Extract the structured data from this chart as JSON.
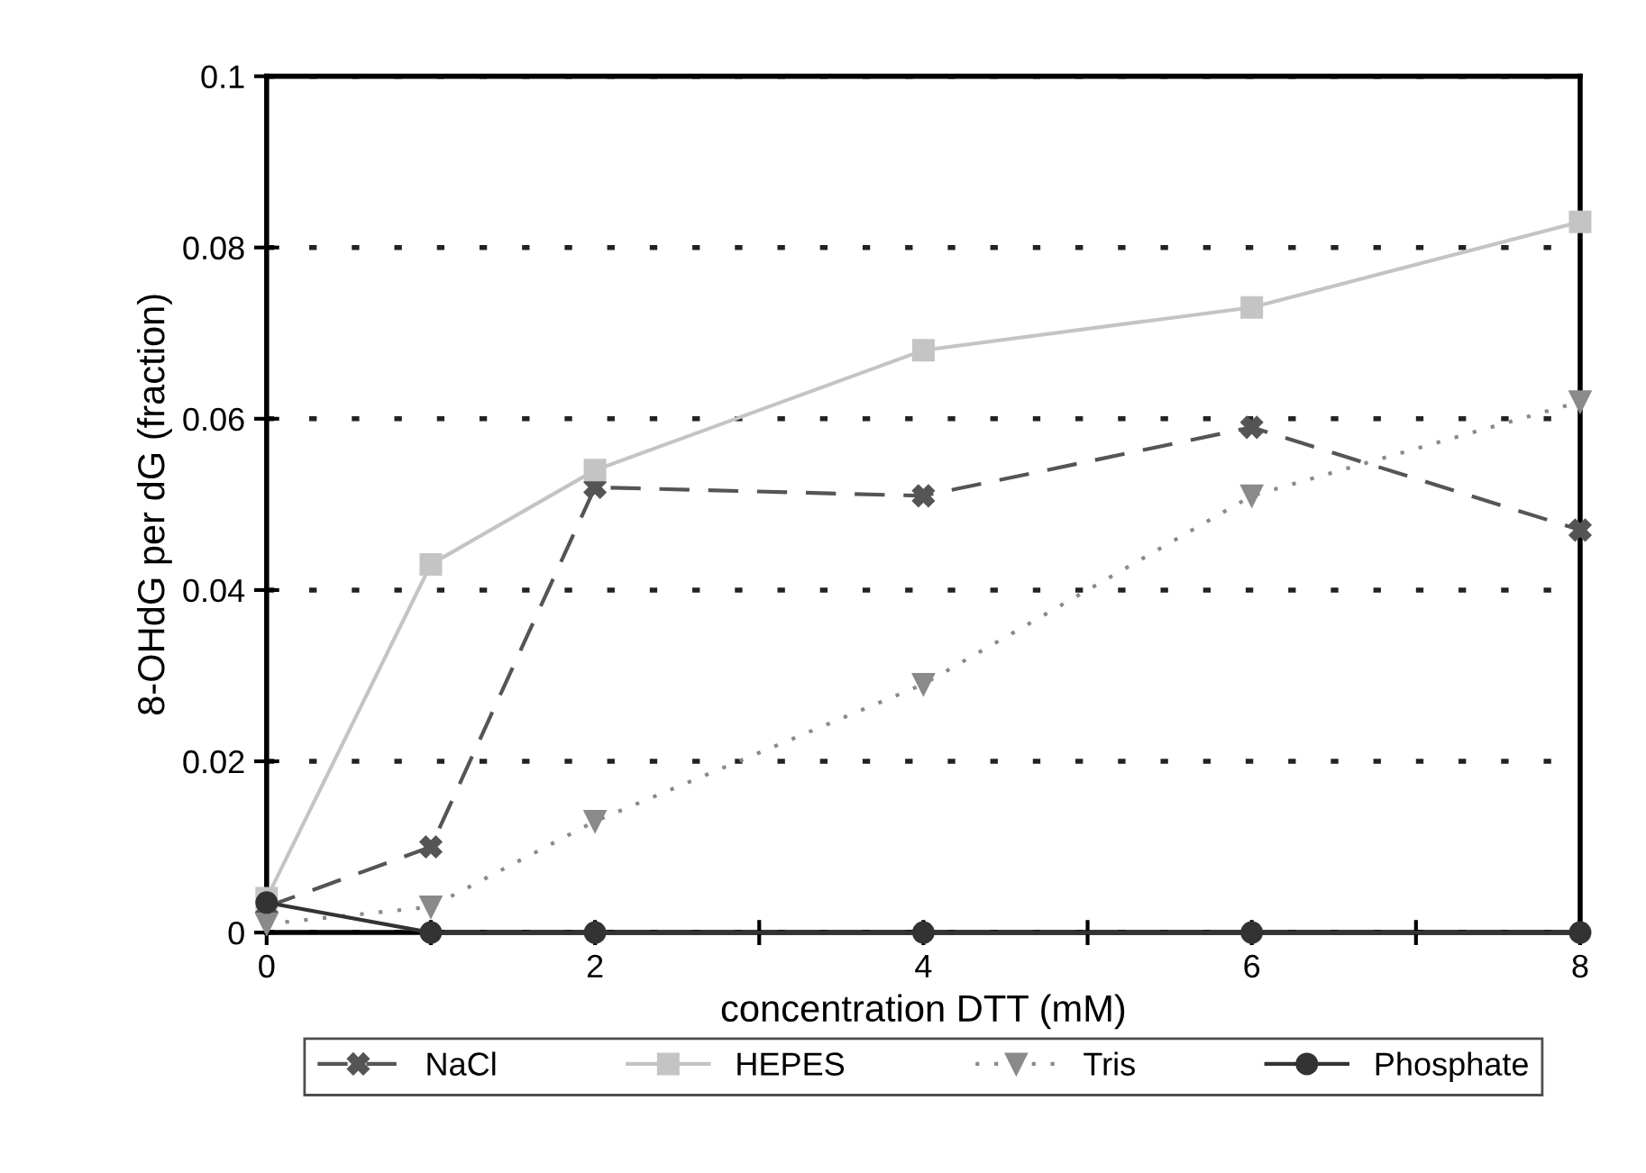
{
  "chart_data": {
    "type": "line",
    "xlabel": "concentration DTT (mM)",
    "ylabel": "8-OHdG per dG (fraction)",
    "x": [
      0,
      1,
      2,
      4,
      6,
      8
    ],
    "series": [
      {
        "name": "NaCl",
        "color": "#555555",
        "marker": "cross",
        "line_style": "dashed",
        "values": [
          0.003,
          0.01,
          0.052,
          0.051,
          0.059,
          0.047
        ]
      },
      {
        "name": "HEPES",
        "color": "#c4c4c4",
        "marker": "square",
        "line_style": "solid",
        "values": [
          0.004,
          0.043,
          0.054,
          0.068,
          0.073,
          0.083
        ]
      },
      {
        "name": "Tris",
        "color": "#8a8a8a",
        "marker": "triangle",
        "line_style": "dotted",
        "values": [
          0.001,
          0.003,
          0.013,
          0.029,
          0.051,
          0.062
        ]
      },
      {
        "name": "Phosphate",
        "color": "#333333",
        "marker": "circle",
        "line_style": "solid",
        "values": [
          0.0035,
          0,
          0,
          0,
          0,
          0
        ]
      }
    ],
    "xlim": [
      0,
      8
    ],
    "xticks": [
      0,
      {
        "value": 1,
        "label": null
      },
      2,
      {
        "value": 3,
        "label": null
      },
      4,
      {
        "value": 5,
        "label": null
      },
      6,
      {
        "value": 7,
        "label": null
      },
      8
    ],
    "ylim": [
      0,
      0.1
    ],
    "yticks": [
      0,
      0.02,
      0.04,
      0.06,
      0.08,
      0.1
    ],
    "grid": "y",
    "legend": "bottom"
  }
}
